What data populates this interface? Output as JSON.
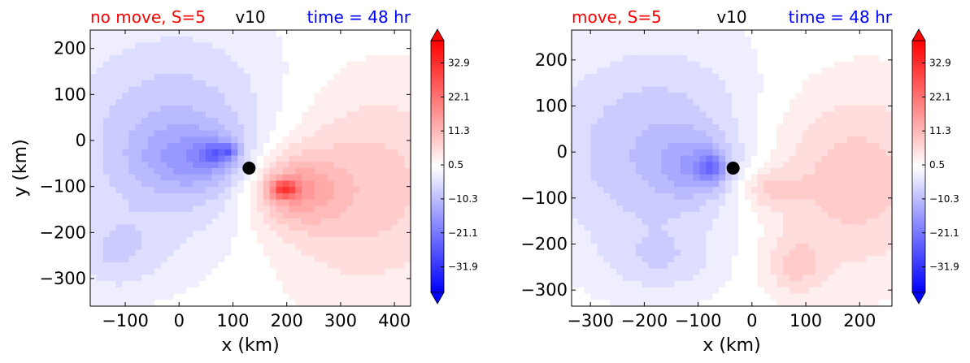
{
  "figure": {
    "colorbar_ticks": [
      32.9,
      22.1,
      11.3,
      0.5,
      -10.3,
      -21.1,
      -31.9
    ],
    "colorbar_tick_labels": [
      "32.9",
      "22.1",
      "11.3",
      "0.5",
      "−10.3",
      "−21.1",
      "−31.9"
    ],
    "colorbar_range": [
      -40,
      40
    ],
    "colors": {
      "positive": "#ff0000",
      "negative": "#0000ff",
      "neutral": "#ffffff",
      "marker": "#000000"
    }
  },
  "chart_data": [
    {
      "type": "heatmap",
      "title_left": "no move, S=5",
      "title_center": "v10",
      "title_right": "time = 48 hr",
      "title_left_color": "#ff0000",
      "title_right_color": "#0000ff",
      "xlabel": "x (km)",
      "ylabel": "y (km)",
      "xlim": [
        -165,
        430
      ],
      "ylim": [
        -360,
        240
      ],
      "xticks": [
        -100,
        0,
        100,
        200,
        300,
        400
      ],
      "xtick_labels": [
        "−100",
        "0",
        "100",
        "200",
        "300",
        "400"
      ],
      "yticks": [
        200,
        100,
        0,
        -100,
        -200,
        -300
      ],
      "ytick_labels": [
        "200",
        "100",
        "0",
        "−100",
        "−200",
        "−300"
      ],
      "center_marker": {
        "x": 130,
        "y": -60
      },
      "features": [
        {
          "x": 330,
          "y": -100,
          "rx": 300,
          "ry": 330,
          "value": 9
        },
        {
          "x": 210,
          "y": -105,
          "rx": 120,
          "ry": 120,
          "value": 12
        },
        {
          "x": 195,
          "y": -105,
          "rx": 38,
          "ry": 30,
          "value": 20
        },
        {
          "x": 0,
          "y": 0,
          "rx": 330,
          "ry": 350,
          "value": -10
        },
        {
          "x": 30,
          "y": -40,
          "rx": 150,
          "ry": 110,
          "value": -8
        },
        {
          "x": 70,
          "y": -30,
          "rx": 50,
          "ry": 40,
          "value": -12
        },
        {
          "x": 95,
          "y": -20,
          "rx": 18,
          "ry": 18,
          "value": -10
        },
        {
          "x": -120,
          "y": -250,
          "rx": 120,
          "ry": 120,
          "value": -5
        }
      ]
    },
    {
      "type": "heatmap",
      "title_left": "move, S=5",
      "title_center": "v10",
      "title_right": "time = 48 hr",
      "title_left_color": "#ff0000",
      "title_right_color": "#0000ff",
      "xlabel": "x (km)",
      "ylabel": "",
      "xlim": [
        -335,
        260
      ],
      "ylim": [
        -335,
        265
      ],
      "xticks": [
        -300,
        -200,
        -100,
        0,
        100,
        200
      ],
      "xtick_labels": [
        "−300",
        "−200",
        "−100",
        "0",
        "100",
        "200"
      ],
      "yticks": [
        200,
        100,
        0,
        -100,
        -200,
        -300
      ],
      "ytick_labels": [
        "200",
        "100",
        "0",
        "−100",
        "−200",
        "−300"
      ],
      "center_marker": {
        "x": -35,
        "y": -35
      },
      "features": [
        {
          "x": 170,
          "y": -60,
          "rx": 300,
          "ry": 300,
          "value": 9
        },
        {
          "x": 30,
          "y": -80,
          "rx": 80,
          "ry": 60,
          "value": 6
        },
        {
          "x": 80,
          "y": -250,
          "rx": 80,
          "ry": 90,
          "value": 6
        },
        {
          "x": -170,
          "y": 0,
          "rx": 320,
          "ry": 340,
          "value": -10
        },
        {
          "x": -100,
          "y": -30,
          "rx": 100,
          "ry": 100,
          "value": -8
        },
        {
          "x": -75,
          "y": -35,
          "rx": 35,
          "ry": 45,
          "value": -12
        },
        {
          "x": -170,
          "y": -240,
          "rx": 150,
          "ry": 100,
          "value": -4
        }
      ]
    }
  ]
}
